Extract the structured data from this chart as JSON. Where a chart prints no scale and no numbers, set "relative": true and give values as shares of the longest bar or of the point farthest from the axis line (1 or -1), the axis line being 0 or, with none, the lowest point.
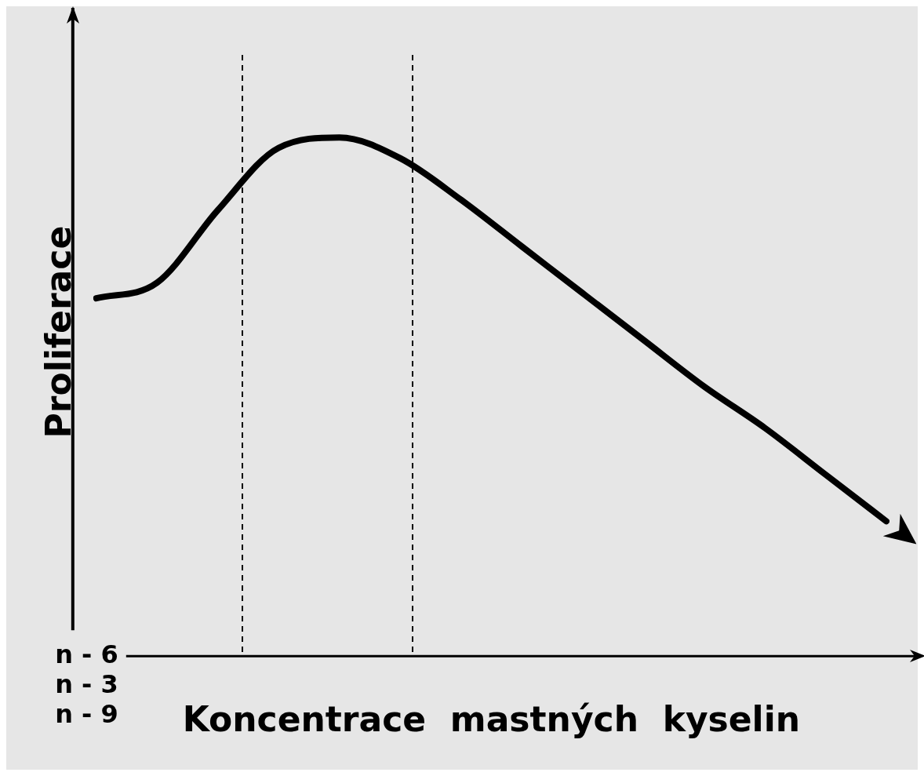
{
  "chart_data": {
    "type": "line",
    "relative": true,
    "ylabel": "Proliferace",
    "xlabel": "Koncentrace  mastných  kyselin",
    "tick_labels": false,
    "grid": false,
    "legend": false,
    "marker": "none",
    "line_style": "solid",
    "categories": [
      null,
      null,
      null,
      null,
      null,
      null,
      null,
      null,
      null,
      null,
      null,
      null,
      null,
      null
    ],
    "series": [
      {
        "color": "#000000",
        "values": [
          0.69,
          0.72,
          0.86,
          0.98,
          1,
          0.96,
          0.88,
          0.79,
          0.7,
          0.61,
          0.52,
          0.44,
          0.35,
          0.26
        ]
      }
    ],
    "annotations": [
      "n - 6",
      "n - 3",
      "n - 9"
    ]
  }
}
